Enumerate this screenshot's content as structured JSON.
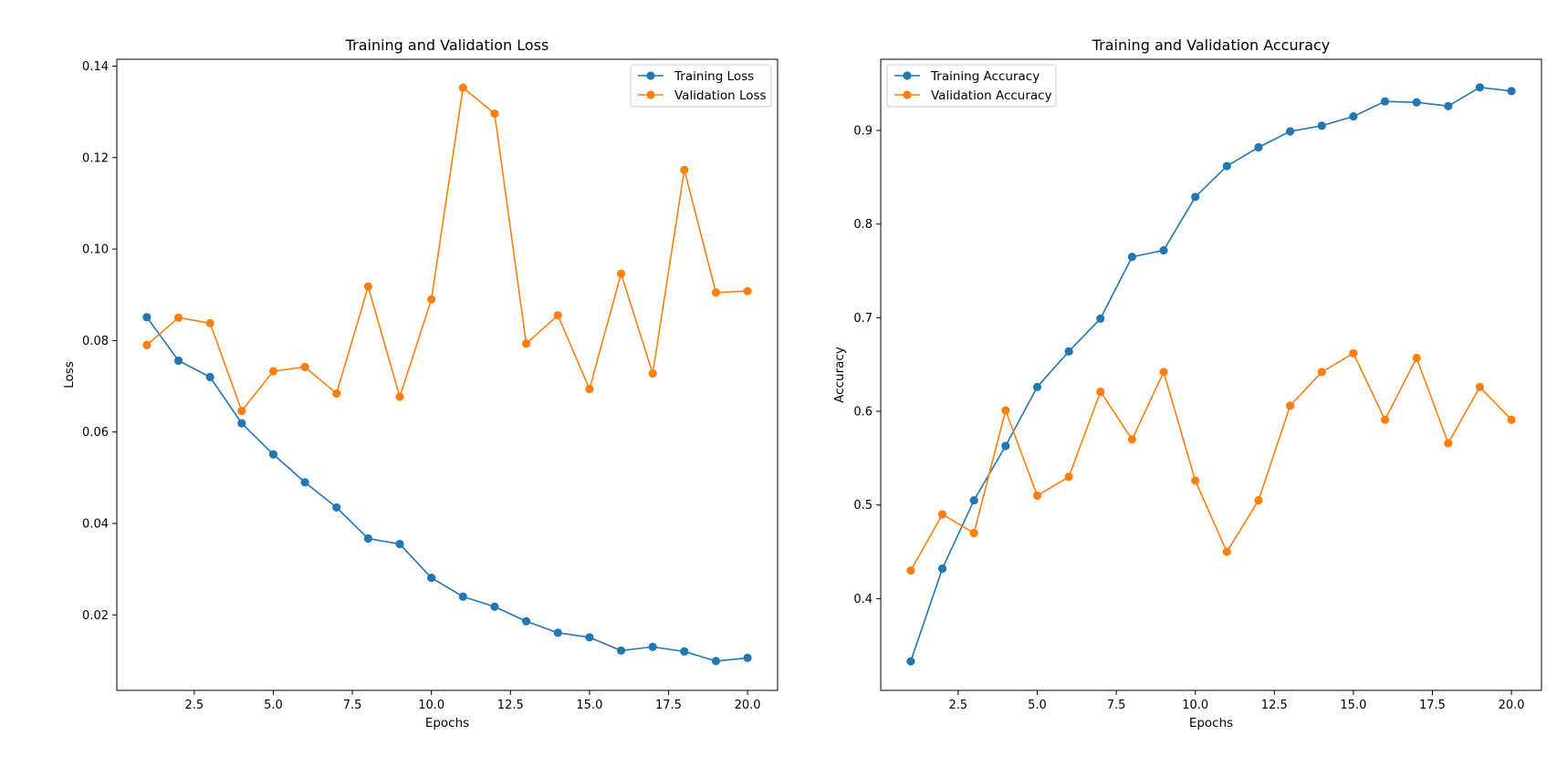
{
  "colors": {
    "series_1": "#1f77b4",
    "series_2": "#ff7f0e",
    "axes": "#000000",
    "background": "#ffffff",
    "legend_border": "#cccccc"
  },
  "chart_data": [
    {
      "type": "line",
      "title": "Training and Validation Loss",
      "xlabel": "Epochs",
      "ylabel": "Loss",
      "xlim": [
        0.05,
        20.95
      ],
      "ylim": [
        0.0035,
        0.1415
      ],
      "xticks": [
        2.5,
        5.0,
        7.5,
        10.0,
        12.5,
        15.0,
        17.5,
        20.0
      ],
      "xtick_labels": [
        "2.5",
        "5.0",
        "7.5",
        "10.0",
        "12.5",
        "15.0",
        "17.5",
        "20.0"
      ],
      "yticks": [
        0.02,
        0.04,
        0.06,
        0.08,
        0.1,
        0.12,
        0.14
      ],
      "ytick_labels": [
        "0.02",
        "0.04",
        "0.06",
        "0.08",
        "0.10",
        "0.12",
        "0.14"
      ],
      "grid": false,
      "legend_position": "top-right",
      "x": [
        1,
        2,
        3,
        4,
        5,
        6,
        7,
        8,
        9,
        10,
        11,
        12,
        13,
        14,
        15,
        16,
        17,
        18,
        19,
        20
      ],
      "series": [
        {
          "name": "Training Loss",
          "color": "#1f77b4",
          "values": [
            0.0851,
            0.0756,
            0.072,
            0.0619,
            0.0551,
            0.049,
            0.0435,
            0.0367,
            0.0355,
            0.0281,
            0.024,
            0.0218,
            0.0186,
            0.0161,
            0.0151,
            0.0122,
            0.013,
            0.012,
            0.0099,
            0.0106
          ]
        },
        {
          "name": "Validation Loss",
          "color": "#ff7f0e",
          "values": [
            0.079,
            0.085,
            0.0838,
            0.0646,
            0.0733,
            0.0742,
            0.0684,
            0.0918,
            0.0677,
            0.089,
            0.1353,
            0.1296,
            0.0793,
            0.0855,
            0.0694,
            0.0946,
            0.0728,
            0.1173,
            0.0905,
            0.0908
          ]
        }
      ]
    },
    {
      "type": "line",
      "title": "Training and Validation Accuracy",
      "xlabel": "Epochs",
      "ylabel": "Accuracy",
      "xlim": [
        0.05,
        20.95
      ],
      "ylim": [
        0.302,
        0.976
      ],
      "xticks": [
        2.5,
        5.0,
        7.5,
        10.0,
        12.5,
        15.0,
        17.5,
        20.0
      ],
      "xtick_labels": [
        "2.5",
        "5.0",
        "7.5",
        "10.0",
        "12.5",
        "15.0",
        "17.5",
        "20.0"
      ],
      "yticks": [
        0.4,
        0.5,
        0.6,
        0.7,
        0.8,
        0.9
      ],
      "ytick_labels": [
        "0.4",
        "0.5",
        "0.6",
        "0.7",
        "0.8",
        "0.9"
      ],
      "grid": false,
      "legend_position": "top-left",
      "x": [
        1,
        2,
        3,
        4,
        5,
        6,
        7,
        8,
        9,
        10,
        11,
        12,
        13,
        14,
        15,
        16,
        17,
        18,
        19,
        20
      ],
      "series": [
        {
          "name": "Training Accuracy",
          "color": "#1f77b4",
          "values": [
            0.333,
            0.432,
            0.505,
            0.563,
            0.626,
            0.664,
            0.699,
            0.765,
            0.772,
            0.829,
            0.862,
            0.882,
            0.899,
            0.905,
            0.915,
            0.931,
            0.93,
            0.926,
            0.946,
            0.942
          ]
        },
        {
          "name": "Validation Accuracy",
          "color": "#ff7f0e",
          "values": [
            0.43,
            0.49,
            0.47,
            0.601,
            0.51,
            0.53,
            0.621,
            0.57,
            0.642,
            0.526,
            0.45,
            0.505,
            0.606,
            0.642,
            0.662,
            0.591,
            0.657,
            0.566,
            0.626,
            0.591
          ]
        }
      ]
    }
  ]
}
